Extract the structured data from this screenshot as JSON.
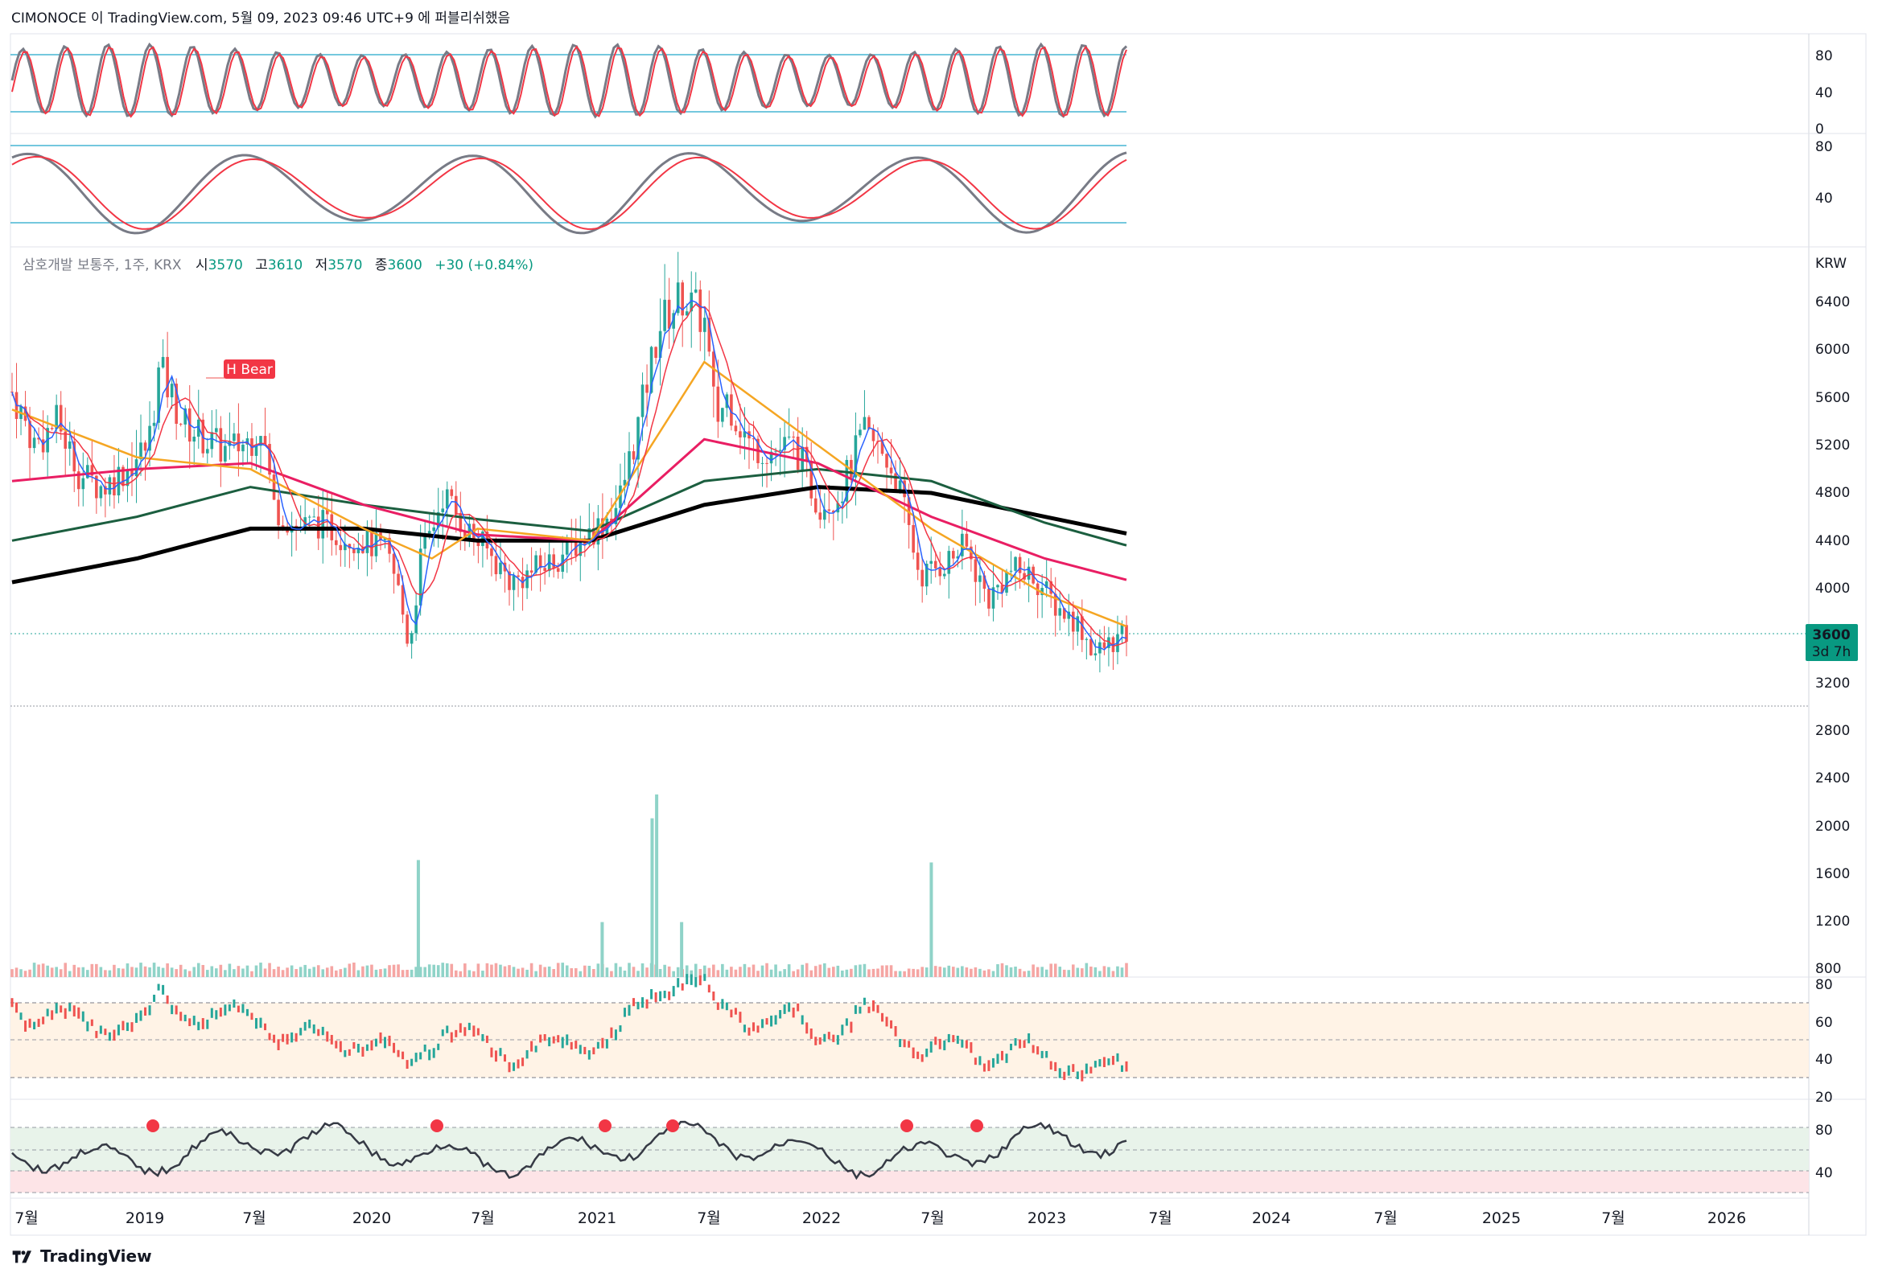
{
  "header": {
    "publisher_line": "CIMONOCE 이 TradingView.com, 5월 09, 2023 09:46 UTC+9 에 퍼블리쉬했음"
  },
  "legend": {
    "symbol": "삼호개발 보통주, 1주, KRX",
    "open_label": "시",
    "open": "3570",
    "high_label": "고",
    "high": "3610",
    "low_label": "저",
    "low": "3570",
    "close_label": "종",
    "close": "3600",
    "change": "+30 (+0.84%)"
  },
  "price_axis": {
    "currency": "KRW",
    "ticks": [
      "6400",
      "6000",
      "5600",
      "5200",
      "4800",
      "4400",
      "4000",
      "3200",
      "2800",
      "2400",
      "2000",
      "1600",
      "1200",
      "800"
    ],
    "last_price": "3600",
    "countdown": "3d 7h"
  },
  "stoch_rsi_axis": {
    "ticks": [
      "80",
      "40",
      "0"
    ]
  },
  "stoch_axis": {
    "ticks": [
      "80",
      "40"
    ]
  },
  "rsi_axis": {
    "ticks": [
      "80",
      "60",
      "40",
      "20"
    ]
  },
  "osc_axis": {
    "ticks": [
      "80",
      "40"
    ]
  },
  "pattern_label": "H Bear",
  "time_axis": {
    "labels": [
      "7월",
      "2019",
      "7월",
      "2020",
      "7월",
      "2021",
      "7월",
      "2022",
      "7월",
      "2023",
      "7월",
      "2024",
      "7월",
      "2025",
      "7월",
      "2026"
    ]
  },
  "footer": {
    "brand": "TradingView"
  },
  "colors": {
    "up": "#26a69a",
    "down": "#ef5350",
    "ma_black": "#000000",
    "ma_green": "#1b5e3f",
    "ma_pink": "#e91e63",
    "ma_orange": "#f5a623",
    "ma_red": "#f23645",
    "ma_blue": "#2962ff",
    "osc_gray": "#787b86",
    "osc_red": "#f23645",
    "band_line": "#22a7c9",
    "oversold_fill": "#7b61ff"
  },
  "chart_data": {
    "type": "candlestick",
    "interval": "1주",
    "exchange": "KRX",
    "last": {
      "open": 3570,
      "high": 3610,
      "low": 3570,
      "close": 3600,
      "change": 30,
      "change_pct": 0.84
    },
    "price_range": [
      2800,
      6600
    ],
    "price_path": [
      [
        2018.45,
        5650
      ],
      [
        2018.55,
        5200
      ],
      [
        2018.65,
        5400
      ],
      [
        2018.75,
        4950
      ],
      [
        2018.85,
        4850
      ],
      [
        2018.95,
        5000
      ],
      [
        2019.05,
        5200
      ],
      [
        2019.1,
        5850
      ],
      [
        2019.2,
        5400
      ],
      [
        2019.3,
        5250
      ],
      [
        2019.4,
        5150
      ],
      [
        2019.5,
        5250
      ],
      [
        2019.55,
        5400
      ],
      [
        2019.6,
        4700
      ],
      [
        2019.7,
        4500
      ],
      [
        2019.8,
        4550
      ],
      [
        2019.9,
        4450
      ],
      [
        2020.0,
        4400
      ],
      [
        2020.1,
        4300
      ],
      [
        2020.15,
        4000
      ],
      [
        2020.2,
        3500
      ],
      [
        2020.25,
        4250
      ],
      [
        2020.3,
        4500
      ],
      [
        2020.35,
        4800
      ],
      [
        2020.45,
        4500
      ],
      [
        2020.55,
        4300
      ],
      [
        2020.65,
        4050
      ],
      [
        2020.75,
        4150
      ],
      [
        2020.85,
        4250
      ],
      [
        2020.95,
        4400
      ],
      [
        2021.05,
        4550
      ],
      [
        2021.12,
        4700
      ],
      [
        2021.2,
        5300
      ],
      [
        2021.3,
        6200
      ],
      [
        2021.4,
        6450
      ],
      [
        2021.5,
        6250
      ],
      [
        2021.55,
        5400
      ],
      [
        2021.6,
        5600
      ],
      [
        2021.7,
        5200
      ],
      [
        2021.8,
        5150
      ],
      [
        2021.9,
        5200
      ],
      [
        2022.0,
        4700
      ],
      [
        2022.1,
        4800
      ],
      [
        2022.2,
        5300
      ],
      [
        2022.3,
        5100
      ],
      [
        2022.35,
        4900
      ],
      [
        2022.45,
        4100
      ],
      [
        2022.55,
        4200
      ],
      [
        2022.65,
        4350
      ],
      [
        2022.75,
        3900
      ],
      [
        2022.85,
        4150
      ],
      [
        2022.95,
        4100
      ],
      [
        2023.05,
        3850
      ],
      [
        2023.15,
        3700
      ],
      [
        2023.22,
        3450
      ],
      [
        2023.3,
        3550
      ],
      [
        2023.36,
        3600
      ]
    ],
    "moving_averages": [
      {
        "color": "black",
        "values": [
          [
            2018.45,
            4050
          ],
          [
            2019.0,
            4250
          ],
          [
            2019.5,
            4500
          ],
          [
            2020.0,
            4500
          ],
          [
            2020.5,
            4400
          ],
          [
            2021.0,
            4400
          ],
          [
            2021.5,
            4700
          ],
          [
            2022.0,
            4850
          ],
          [
            2022.5,
            4800
          ],
          [
            2023.0,
            4600
          ],
          [
            2023.36,
            4460
          ]
        ]
      },
      {
        "color": "green",
        "values": [
          [
            2018.45,
            4400
          ],
          [
            2019.0,
            4600
          ],
          [
            2019.5,
            4850
          ],
          [
            2020.0,
            4700
          ],
          [
            2020.5,
            4580
          ],
          [
            2021.0,
            4480
          ],
          [
            2021.5,
            4900
          ],
          [
            2022.0,
            5000
          ],
          [
            2022.5,
            4900
          ],
          [
            2023.0,
            4550
          ],
          [
            2023.36,
            4360
          ]
        ]
      },
      {
        "color": "pink",
        "values": [
          [
            2018.45,
            4900
          ],
          [
            2019.0,
            5000
          ],
          [
            2019.5,
            5050
          ],
          [
            2020.0,
            4700
          ],
          [
            2020.5,
            4450
          ],
          [
            2021.0,
            4400
          ],
          [
            2021.5,
            5250
          ],
          [
            2022.0,
            5050
          ],
          [
            2022.5,
            4600
          ],
          [
            2023.0,
            4250
          ],
          [
            2023.36,
            4070
          ]
        ]
      },
      {
        "color": "orange",
        "values": [
          [
            2018.45,
            5500
          ],
          [
            2019.0,
            5100
          ],
          [
            2019.5,
            5000
          ],
          [
            2020.0,
            4500
          ],
          [
            2020.3,
            4250
          ],
          [
            2020.5,
            4500
          ],
          [
            2021.0,
            4400
          ],
          [
            2021.5,
            5900
          ],
          [
            2022.0,
            5200
          ],
          [
            2022.5,
            4500
          ],
          [
            2023.0,
            3950
          ],
          [
            2023.36,
            3680
          ]
        ]
      }
    ],
    "volume_spikes": [
      {
        "x": 2020.24,
        "value": 1700
      },
      {
        "x": 2021.05,
        "value": 1180
      },
      {
        "x": 2021.27,
        "value": 2050
      },
      {
        "x": 2021.29,
        "value": 2250
      },
      {
        "x": 2021.4,
        "value": 1180
      },
      {
        "x": 2022.5,
        "value": 1680
      }
    ],
    "pattern_markers": [
      {
        "label": "H Bear",
        "x": 2019.5
      }
    ],
    "indicator_bands": {
      "stoch_rsi": [
        20,
        80
      ],
      "rsi": [
        30,
        70
      ]
    }
  }
}
